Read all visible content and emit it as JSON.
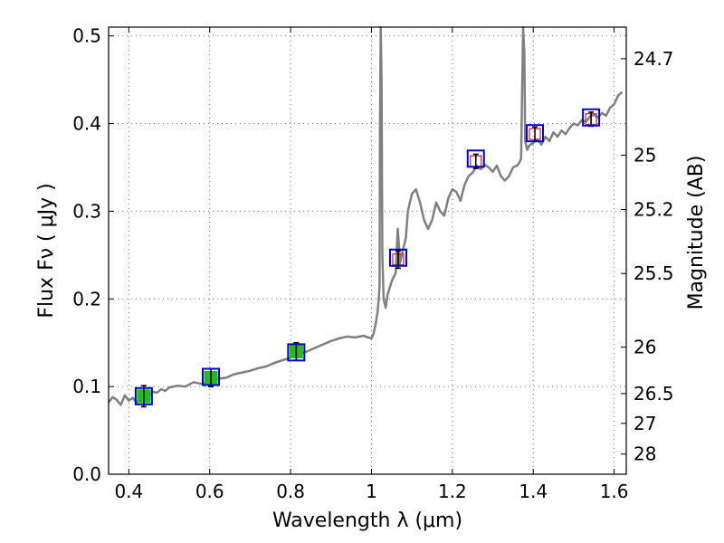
{
  "chart_data": {
    "type": "line",
    "title": "",
    "xlabel": "Wavelength  λ (μm)",
    "ylabel": "Flux  Fν  ( μJy )",
    "ylabel_right": "Magnitude (AB)",
    "xlim": [
      0.35,
      1.63
    ],
    "ylim": [
      0.0,
      0.51
    ],
    "grid": true,
    "x_ticks": [
      0.4,
      0.6,
      0.8,
      1.0,
      1.2,
      1.4,
      1.6
    ],
    "x_tick_labels": [
      "0.4",
      "0.6",
      "0.8",
      "1",
      "1.2",
      "1.4",
      "1.6"
    ],
    "y_ticks": [
      0.0,
      0.1,
      0.2,
      0.3,
      0.4,
      0.5
    ],
    "y_tick_labels": [
      "0.0",
      "0.1",
      "0.2",
      "0.3",
      "0.4",
      "0.5"
    ],
    "right_ticks": [
      {
        "flux": 0.474,
        "label": "24.7"
      },
      {
        "flux": 0.364,
        "label": "25"
      },
      {
        "flux": 0.302,
        "label": "25.2"
      },
      {
        "flux": 0.229,
        "label": "25.5"
      },
      {
        "flux": 0.145,
        "label": "26"
      },
      {
        "flux": 0.092,
        "label": "26.5"
      },
      {
        "flux": 0.058,
        "label": "27"
      },
      {
        "flux": 0.023,
        "label": "28"
      }
    ],
    "colors": {
      "spectrum": "#808080",
      "model_box": "#0000cc",
      "detection_fill": "#22bb22",
      "nir_marker": "#cc2222",
      "error_bar": "#000000"
    },
    "series": [
      {
        "kind": "spectrum",
        "x": [
          0.35,
          0.36,
          0.37,
          0.38,
          0.39,
          0.4,
          0.41,
          0.42,
          0.43,
          0.44,
          0.45,
          0.46,
          0.47,
          0.48,
          0.49,
          0.5,
          0.52,
          0.54,
          0.56,
          0.58,
          0.6,
          0.62,
          0.64,
          0.66,
          0.68,
          0.7,
          0.72,
          0.74,
          0.76,
          0.78,
          0.8,
          0.82,
          0.84,
          0.86,
          0.88,
          0.9,
          0.92,
          0.94,
          0.96,
          0.98,
          1.0,
          1.005,
          1.01,
          1.015,
          1.018,
          1.02,
          1.021,
          1.023,
          1.025,
          1.027,
          1.03,
          1.035,
          1.04,
          1.05,
          1.06,
          1.065,
          1.068,
          1.07,
          1.075,
          1.08,
          1.085,
          1.09,
          1.1,
          1.11,
          1.12,
          1.13,
          1.14,
          1.15,
          1.16,
          1.17,
          1.18,
          1.19,
          1.2,
          1.21,
          1.22,
          1.23,
          1.24,
          1.25,
          1.26,
          1.27,
          1.28,
          1.29,
          1.3,
          1.31,
          1.32,
          1.33,
          1.34,
          1.35,
          1.36,
          1.365,
          1.37,
          1.372,
          1.375,
          1.378,
          1.38,
          1.385,
          1.39,
          1.4,
          1.41,
          1.42,
          1.43,
          1.44,
          1.45,
          1.46,
          1.47,
          1.48,
          1.49,
          1.5,
          1.51,
          1.52,
          1.53,
          1.54,
          1.55,
          1.56,
          1.57,
          1.58,
          1.59,
          1.6,
          1.61,
          1.62
        ],
        "y": [
          0.082,
          0.088,
          0.085,
          0.079,
          0.09,
          0.084,
          0.087,
          0.081,
          0.092,
          0.086,
          0.089,
          0.094,
          0.093,
          0.097,
          0.095,
          0.099,
          0.101,
          0.1,
          0.105,
          0.103,
          0.107,
          0.109,
          0.11,
          0.114,
          0.116,
          0.118,
          0.121,
          0.123,
          0.127,
          0.13,
          0.133,
          0.137,
          0.14,
          0.144,
          0.148,
          0.152,
          0.155,
          0.157,
          0.156,
          0.158,
          0.155,
          0.16,
          0.17,
          0.185,
          0.2,
          0.215,
          0.4,
          0.51,
          0.45,
          0.25,
          0.2,
          0.19,
          0.205,
          0.22,
          0.23,
          0.28,
          0.26,
          0.24,
          0.25,
          0.26,
          0.27,
          0.3,
          0.32,
          0.325,
          0.31,
          0.29,
          0.28,
          0.29,
          0.31,
          0.3,
          0.295,
          0.315,
          0.325,
          0.322,
          0.312,
          0.33,
          0.34,
          0.344,
          0.352,
          0.348,
          0.353,
          0.35,
          0.345,
          0.352,
          0.34,
          0.335,
          0.34,
          0.35,
          0.352,
          0.355,
          0.36,
          0.42,
          0.51,
          0.48,
          0.38,
          0.37,
          0.375,
          0.378,
          0.382,
          0.376,
          0.385,
          0.38,
          0.39,
          0.385,
          0.392,
          0.388,
          0.395,
          0.4,
          0.398,
          0.404,
          0.402,
          0.408,
          0.41,
          0.407,
          0.412,
          0.409,
          0.418,
          0.422,
          0.432,
          0.436
        ]
      },
      {
        "kind": "photometry",
        "name": "",
        "points": [
          {
            "x": 0.437,
            "y": 0.089,
            "model": 0.089,
            "err": 0.012,
            "type": "detection"
          },
          {
            "x": 0.603,
            "y": 0.11,
            "model": 0.111,
            "err": 0.01,
            "type": "detection"
          },
          {
            "x": 0.814,
            "y": 0.14,
            "model": 0.139,
            "err": 0.01,
            "type": "detection"
          },
          {
            "x": 1.066,
            "y": 0.245,
            "model": 0.247,
            "err": 0.01,
            "type": "nir"
          },
          {
            "x": 1.258,
            "y": 0.357,
            "model": 0.36,
            "err": 0.008,
            "type": "nir"
          },
          {
            "x": 1.404,
            "y": 0.388,
            "model": 0.389,
            "err": 0.008,
            "type": "nir"
          },
          {
            "x": 1.543,
            "y": 0.405,
            "model": 0.407,
            "err": 0.008,
            "type": "nir"
          }
        ]
      }
    ]
  }
}
